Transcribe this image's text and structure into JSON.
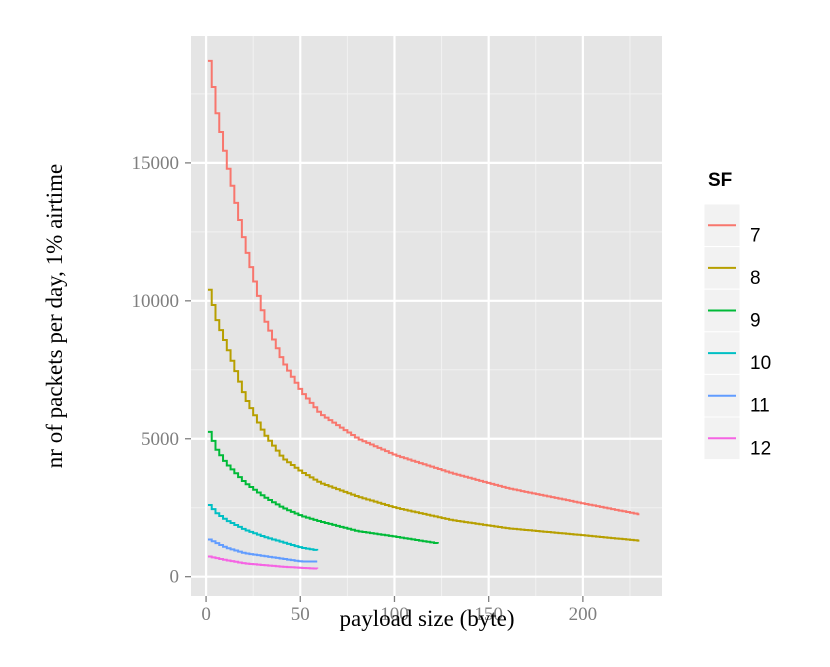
{
  "chart_data": {
    "type": "line",
    "xlabel": "payload size (byte)",
    "ylabel": "nr of packets per day, 1% airtime",
    "xlim": [
      -8,
      242
    ],
    "ylim": [
      -700,
      19600
    ],
    "x_ticks": [
      0,
      50,
      100,
      150,
      200
    ],
    "y_ticks": [
      0,
      5000,
      10000,
      15000
    ],
    "x_tick_labels": [
      "0",
      "50",
      "100",
      "150",
      "200"
    ],
    "y_tick_labels": [
      "0",
      "5000",
      "10000",
      "15000"
    ],
    "grid": true,
    "background": "#e5e5e5",
    "legend": {
      "title": "SF",
      "position": "right"
    },
    "series": [
      {
        "name": "7",
        "color": "#f8766d",
        "x_range": [
          1,
          230
        ],
        "points": [
          [
            1,
            18700
          ],
          [
            5,
            16800
          ],
          [
            10,
            15100
          ],
          [
            20,
            12000
          ],
          [
            30,
            9400
          ],
          [
            40,
            7800
          ],
          [
            50,
            6700
          ],
          [
            60,
            5900
          ],
          [
            80,
            5000
          ],
          [
            100,
            4400
          ],
          [
            130,
            3750
          ],
          [
            160,
            3200
          ],
          [
            200,
            2650
          ],
          [
            230,
            2250
          ]
        ]
      },
      {
        "name": "8",
        "color": "#b79f00",
        "x_range": [
          1,
          230
        ],
        "points": [
          [
            1,
            10400
          ],
          [
            5,
            9300
          ],
          [
            10,
            8400
          ],
          [
            20,
            6500
          ],
          [
            30,
            5200
          ],
          [
            40,
            4300
          ],
          [
            50,
            3800
          ],
          [
            60,
            3400
          ],
          [
            80,
            2900
          ],
          [
            100,
            2500
          ],
          [
            130,
            2050
          ],
          [
            160,
            1750
          ],
          [
            200,
            1500
          ],
          [
            230,
            1300
          ]
        ]
      },
      {
        "name": "9",
        "color": "#00ba38",
        "x_range": [
          1,
          123
        ],
        "points": [
          [
            1,
            5250
          ],
          [
            5,
            4600
          ],
          [
            10,
            4100
          ],
          [
            20,
            3400
          ],
          [
            30,
            2900
          ],
          [
            40,
            2500
          ],
          [
            50,
            2200
          ],
          [
            60,
            2000
          ],
          [
            80,
            1650
          ],
          [
            100,
            1450
          ],
          [
            123,
            1200
          ]
        ]
      },
      {
        "name": "10",
        "color": "#00bfc4",
        "x_range": [
          1,
          59
        ],
        "points": [
          [
            1,
            2600
          ],
          [
            5,
            2300
          ],
          [
            10,
            2050
          ],
          [
            20,
            1700
          ],
          [
            30,
            1450
          ],
          [
            40,
            1250
          ],
          [
            50,
            1050
          ],
          [
            59,
            950
          ]
        ]
      },
      {
        "name": "11",
        "color": "#619cff",
        "x_range": [
          1,
          59
        ],
        "points": [
          [
            1,
            1350
          ],
          [
            10,
            1050
          ],
          [
            20,
            850
          ],
          [
            30,
            750
          ],
          [
            40,
            650
          ],
          [
            50,
            550
          ],
          [
            59,
            550
          ]
        ]
      },
      {
        "name": "12",
        "color": "#f564e3",
        "x_range": [
          1,
          59
        ],
        "points": [
          [
            1,
            730
          ],
          [
            10,
            600
          ],
          [
            20,
            480
          ],
          [
            30,
            420
          ],
          [
            40,
            360
          ],
          [
            50,
            320
          ],
          [
            59,
            290
          ]
        ]
      }
    ]
  }
}
